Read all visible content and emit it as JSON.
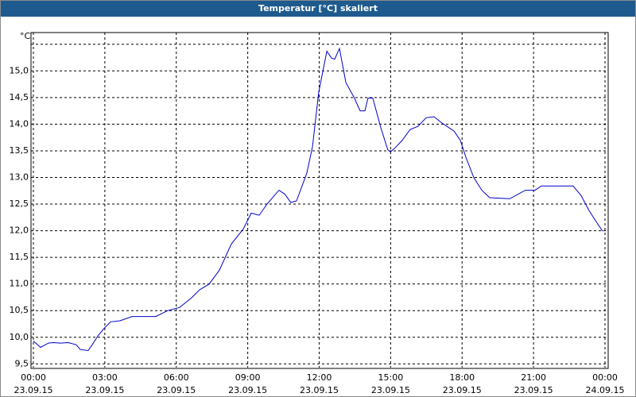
{
  "chart_data": {
    "type": "line",
    "title": "Temperatur [°C] skaliert",
    "y_unit": "°C",
    "xlim": [
      0,
      24
    ],
    "ylim": [
      9.43,
      15.72
    ],
    "xticks": [
      {
        "value": 0,
        "label": "00:00",
        "date": "23.09.15"
      },
      {
        "value": 3,
        "label": "03:00",
        "date": "23.09.15"
      },
      {
        "value": 6,
        "label": "06:00",
        "date": "23.09.15"
      },
      {
        "value": 9,
        "label": "09:00",
        "date": "23.09.15"
      },
      {
        "value": 12,
        "label": "12:00",
        "date": "23.09.15"
      },
      {
        "value": 15,
        "label": "15:00",
        "date": "23.09.15"
      },
      {
        "value": 18,
        "label": "18:00",
        "date": "23.09.15"
      },
      {
        "value": 21,
        "label": "21:00",
        "date": "23.09.15"
      },
      {
        "value": 24,
        "label": "00:00",
        "date": "24.09.15"
      }
    ],
    "yticks": [
      {
        "value": 9.5,
        "label": "9,5"
      },
      {
        "value": 10,
        "label": "10,0"
      },
      {
        "value": 10.5,
        "label": "10,5"
      },
      {
        "value": 11,
        "label": "11,0"
      },
      {
        "value": 11.5,
        "label": "11,5"
      },
      {
        "value": 12,
        "label": "12,0"
      },
      {
        "value": 12.5,
        "label": "12,5"
      },
      {
        "value": 13,
        "label": "13,0"
      },
      {
        "value": 13.5,
        "label": "13,5"
      },
      {
        "value": 14,
        "label": "14,0"
      },
      {
        "value": 14.5,
        "label": "14,5"
      },
      {
        "value": 15,
        "label": "15,0"
      }
    ],
    "ygrid": [
      9.5,
      10,
      10.5,
      11,
      11.5,
      12,
      12.5,
      13,
      13.5,
      14,
      14.5,
      15,
      15.5
    ],
    "grid": true,
    "series": [
      {
        "name": "Temperatur",
        "color": "#0000cc",
        "x": [
          0,
          0.3,
          0.63,
          0.83,
          1.13,
          1.47,
          1.8,
          1.97,
          2.3,
          2.47,
          2.7,
          2.97,
          3.24,
          3.64,
          4.14,
          5.14,
          5.64,
          6.14,
          6.64,
          6.98,
          7.38,
          7.81,
          8.31,
          8.81,
          9.15,
          9.48,
          9.81,
          10.31,
          10.55,
          10.81,
          11.05,
          11.48,
          11.72,
          11.98,
          12.32,
          12.52,
          12.65,
          12.85,
          13.12,
          13.48,
          13.72,
          13.92,
          14.05,
          14.25,
          14.59,
          14.88,
          14.99,
          15.22,
          15.49,
          15.82,
          16.15,
          16.49,
          16.82,
          17.16,
          17.66,
          17.92,
          18.16,
          18.49,
          18.83,
          19.16,
          20.0,
          20.66,
          21.06,
          21.33,
          22.66,
          23.0,
          23.33,
          23.66,
          23.9
        ],
        "values": [
          9.93,
          9.81,
          9.89,
          9.9,
          9.89,
          9.9,
          9.86,
          9.77,
          9.75,
          9.86,
          10.02,
          10.17,
          10.29,
          10.31,
          10.39,
          10.39,
          10.5,
          10.56,
          10.74,
          10.89,
          11.0,
          11.26,
          11.75,
          12.03,
          12.33,
          12.29,
          12.5,
          12.76,
          12.69,
          12.53,
          12.56,
          13.08,
          13.58,
          14.6,
          15.37,
          15.24,
          15.22,
          15.42,
          14.78,
          14.49,
          14.25,
          14.25,
          14.49,
          14.49,
          13.93,
          13.52,
          13.48,
          13.57,
          13.7,
          13.9,
          13.96,
          14.12,
          14.14,
          14.02,
          13.87,
          13.7,
          13.38,
          13.0,
          12.76,
          12.62,
          12.6,
          12.76,
          12.76,
          12.84,
          12.84,
          12.66,
          12.38,
          12.15,
          11.99
        ]
      }
    ]
  }
}
